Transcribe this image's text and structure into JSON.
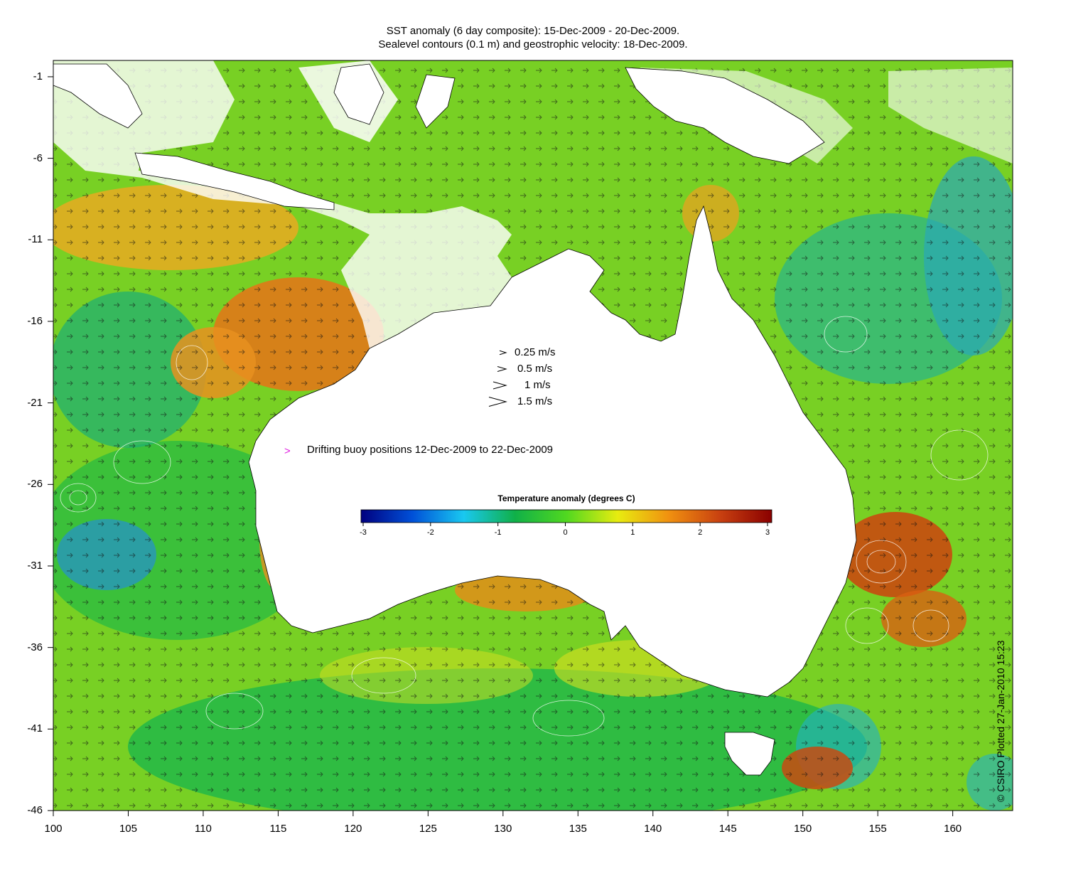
{
  "title_line1": "SST anomaly (6 day composite): 15-Dec-2009 - 20-Dec-2009.",
  "title_line2": "Sealevel contours (0.1 m) and geostrophic velocity: 18-Dec-2009.",
  "map": {
    "lon_range": [
      100,
      164
    ],
    "lat_range": [
      -46,
      0
    ],
    "x_ticks": [
      "100",
      "105",
      "110",
      "115",
      "120",
      "125",
      "130",
      "135",
      "140",
      "145",
      "150",
      "155",
      "160"
    ],
    "y_ticks": [
      "-1",
      "-6",
      "-11",
      "-16",
      "-21",
      "-26",
      "-31",
      "-36",
      "-41",
      "-46"
    ],
    "y_tick_values": [
      -1,
      -6,
      -11,
      -16,
      -21,
      -26,
      -31,
      -36,
      -41,
      -46
    ]
  },
  "velocity_legend": [
    {
      "speed": 0.25,
      "label": "0.25 m/s"
    },
    {
      "speed": 0.5,
      "label": "0.5 m/s"
    },
    {
      "speed": 1,
      "label": "1 m/s"
    },
    {
      "speed": 1.5,
      "label": "1.5 m/s"
    }
  ],
  "buoy_legend": {
    "symbol": ">",
    "label": "Drifting buoy positions 12-Dec-2009 to 22-Dec-2009",
    "color": "#e020e0"
  },
  "colorbar": {
    "title": "Temperature anomaly (degrees C)",
    "range": [
      -3,
      3
    ],
    "ticks": [
      "-3",
      "-2",
      "-1",
      "0",
      "1",
      "2",
      "3"
    ],
    "stops": [
      "#00007f",
      "#0050d8",
      "#19c8f0",
      "#10b048",
      "#50d820",
      "#e8ec10",
      "#f09010",
      "#c84010",
      "#8a0000"
    ]
  },
  "credit": "© CSIRO Plotted 27-Jan-2010 15:23",
  "colors": {
    "ocean_warm": "#f0a020",
    "ocean_mild": "#c8e020",
    "ocean_neutral": "#20c040",
    "ocean_cool": "#20b0c0",
    "land": "#ffffff"
  }
}
